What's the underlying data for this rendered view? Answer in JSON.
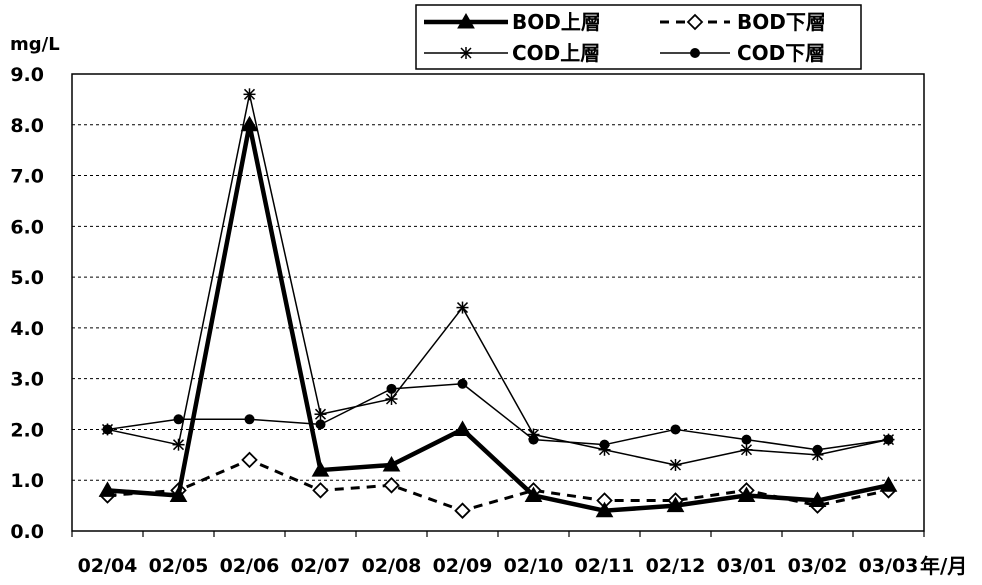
{
  "chart_data": {
    "type": "line",
    "ylabel": "mg/L",
    "xlabel": "年/月",
    "categories": [
      "02/04",
      "02/05",
      "02/06",
      "02/07",
      "02/08",
      "02/09",
      "02/10",
      "02/11",
      "02/12",
      "03/01",
      "03/02",
      "03/03"
    ],
    "ylim": [
      0,
      9
    ],
    "yticks": [
      "0.0",
      "1.0",
      "2.0",
      "3.0",
      "4.0",
      "5.0",
      "6.0",
      "7.0",
      "8.0",
      "9.0"
    ],
    "grid": true,
    "legend_position": "top-right",
    "series": [
      {
        "name": "BOD上層",
        "marker": "triangle",
        "line": "thick-solid",
        "values": [
          0.8,
          0.7,
          8.0,
          1.2,
          1.3,
          2.0,
          0.7,
          0.4,
          0.5,
          0.7,
          0.6,
          0.9
        ]
      },
      {
        "name": "BOD下層",
        "marker": "diamond-open",
        "line": "dashed",
        "values": [
          0.7,
          0.8,
          1.4,
          0.8,
          0.9,
          0.4,
          0.8,
          0.6,
          0.6,
          0.8,
          0.5,
          0.8
        ]
      },
      {
        "name": "COD上層",
        "marker": "asterisk",
        "line": "thin-solid",
        "values": [
          2.0,
          1.7,
          8.6,
          2.3,
          2.6,
          4.4,
          1.9,
          1.6,
          1.3,
          1.6,
          1.5,
          1.8
        ]
      },
      {
        "name": "COD下層",
        "marker": "circle",
        "line": "thin-solid",
        "values": [
          2.0,
          2.2,
          2.2,
          2.1,
          2.8,
          2.9,
          1.8,
          1.7,
          2.0,
          1.8,
          1.6,
          1.8
        ]
      }
    ]
  }
}
